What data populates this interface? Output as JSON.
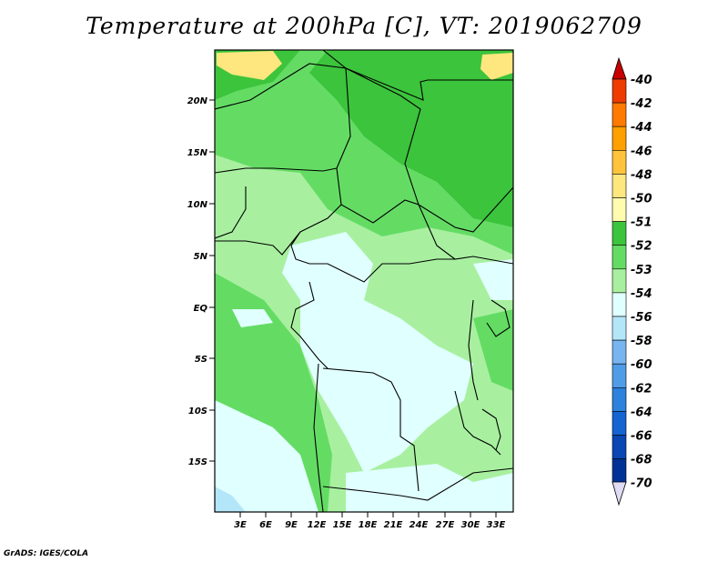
{
  "title": "Temperature at 200hPa [C], VT: 2019062709",
  "credit": "GrADS: IGES/COLA",
  "map": {
    "lat_labels": [
      "20N",
      "15N",
      "10N",
      "5N",
      "EQ",
      "5S",
      "10S",
      "15S"
    ],
    "lon_labels": [
      "3E",
      "6E",
      "9E",
      "12E",
      "15E",
      "18E",
      "21E",
      "24E",
      "27E",
      "30E",
      "33E"
    ]
  },
  "colorbar": {
    "labels": [
      "-40",
      "-42",
      "-44",
      "-46",
      "-48",
      "-50",
      "-51",
      "-52",
      "-53",
      "-54",
      "-56",
      "-58",
      "-60",
      "-62",
      "-64",
      "-66",
      "-68",
      "-70"
    ],
    "colors": [
      "#c80000",
      "#ee3b00",
      "#ff7a00",
      "#ff9f00",
      "#ffc43c",
      "#ffe77f",
      "#fffcb0",
      "#3cc43c",
      "#64dc64",
      "#a8f0a0",
      "#e0ffff",
      "#b4e6fa",
      "#78b4f0",
      "#509ce6",
      "#2c82dc",
      "#1464d2",
      "#0a46b4",
      "#003296",
      "#00146e",
      "#e0dcf5"
    ]
  }
}
